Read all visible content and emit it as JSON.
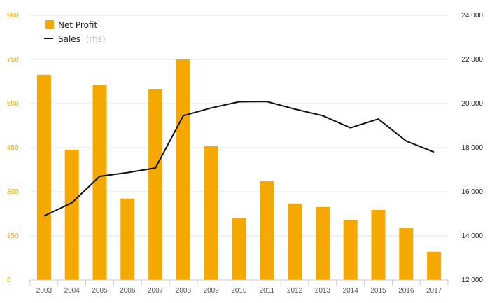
{
  "chart_data": {
    "type": "bar",
    "categories": [
      "2003",
      "2004",
      "2005",
      "2006",
      "2007",
      "2008",
      "2009",
      "2010",
      "2011",
      "2012",
      "2013",
      "2014",
      "2015",
      "2016",
      "2017"
    ],
    "series": [
      {
        "name": "Net Profit",
        "type": "bar",
        "axis": "left",
        "color": "#f5a800",
        "values": [
          698,
          443,
          663,
          277,
          650,
          750,
          455,
          212,
          336,
          260,
          248,
          204,
          238,
          176,
          96
        ]
      },
      {
        "name": "Sales",
        "type": "line",
        "axis": "right",
        "color": "#111111",
        "values": [
          14900,
          15500,
          16700,
          16870,
          17080,
          19450,
          19800,
          20080,
          20090,
          19750,
          19450,
          18900,
          19300,
          18300,
          17800
        ]
      }
    ],
    "legend_note": "(rhs)",
    "y_left": {
      "ylim": [
        0,
        900
      ],
      "ticks": [
        "0",
        "150",
        "300",
        "450",
        "600",
        "750",
        "900"
      ]
    },
    "y_right": {
      "ylim": [
        12000,
        24000
      ],
      "ticks": [
        "12 000",
        "14 000",
        "16 000",
        "18 000",
        "20 000",
        "22 000",
        "24 000"
      ]
    },
    "grid": true,
    "legend_position": "top-left"
  }
}
